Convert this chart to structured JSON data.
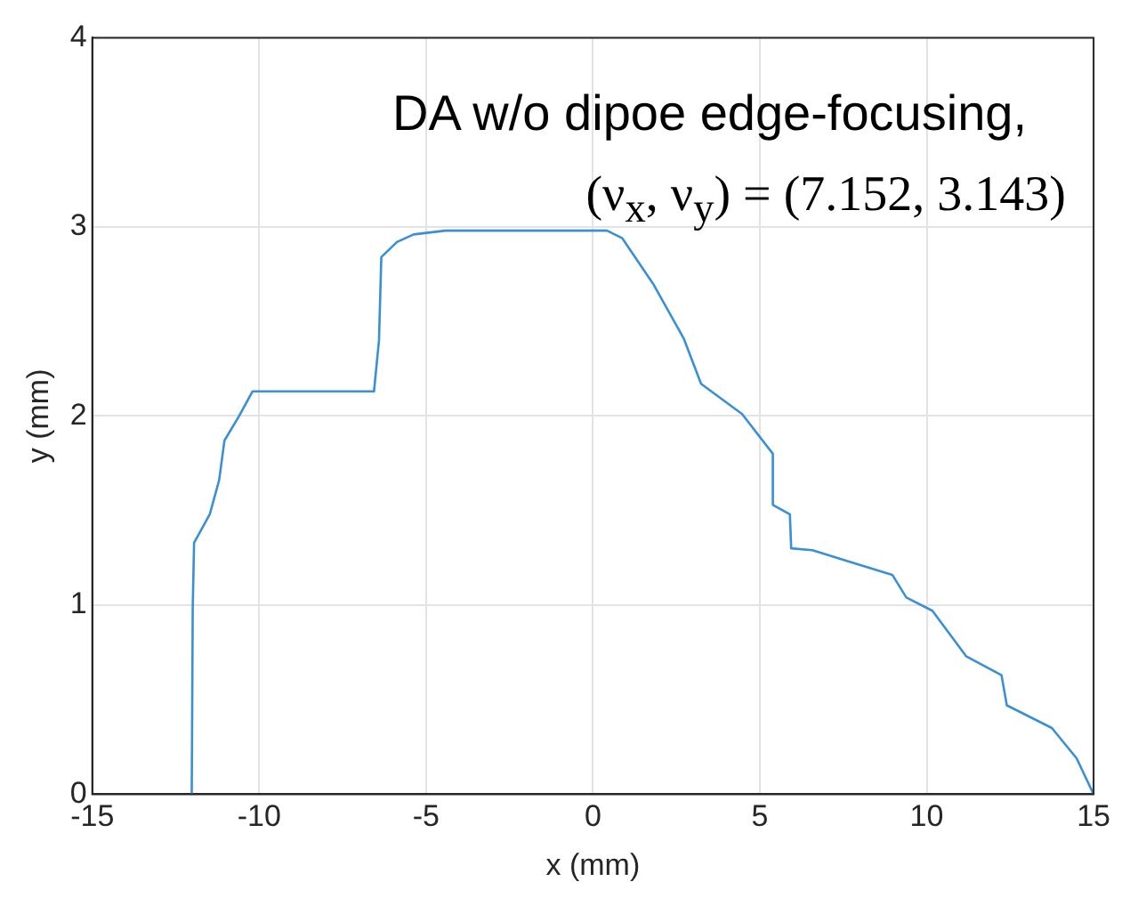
{
  "chart_data": {
    "type": "line",
    "xlabel": "x (mm)",
    "ylabel": "y (mm)",
    "annotations": [
      "DA w/o dipoe edge-focusing,",
      "(ν$_{x}$, ν$_{y}$) = (7.152, 3.143)"
    ],
    "x": [
      -12.02,
      -11.99,
      -11.95,
      -11.48,
      -11.2,
      -11.04,
      -10.6,
      -10.2,
      -6.56,
      -6.41,
      -6.34,
      -5.87,
      -5.37,
      -4.41,
      0.42,
      0.88,
      1.8,
      2.72,
      3.24,
      4.47,
      5.39,
      5.39,
      5.9,
      5.94,
      6.58,
      7.5,
      8.97,
      9.39,
      10.17,
      11.18,
      12.24,
      12.4,
      13.75,
      14.49,
      15.0
    ],
    "series": [
      {
        "color": "#3a8fd6",
        "values": [
          0,
          0.99,
          1.33,
          1.48,
          1.66,
          1.87,
          2.0,
          2.13,
          2.13,
          2.4,
          2.84,
          2.92,
          2.96,
          2.98,
          2.98,
          2.94,
          2.7,
          2.41,
          2.17,
          2.01,
          1.8,
          1.53,
          1.48,
          1.3,
          1.29,
          1.24,
          1.16,
          1.04,
          0.97,
          0.73,
          0.63,
          0.47,
          0.35,
          0.19,
          0
        ]
      }
    ],
    "xlim": [
      -15,
      15
    ],
    "ylim": [
      0,
      4
    ],
    "xticks": [
      -15,
      -10,
      -5,
      0,
      5,
      10,
      15
    ],
    "yticks": [
      0,
      1,
      2,
      3,
      4
    ],
    "grid": true,
    "legend": false,
    "marker": "none",
    "line_style": "solid"
  }
}
